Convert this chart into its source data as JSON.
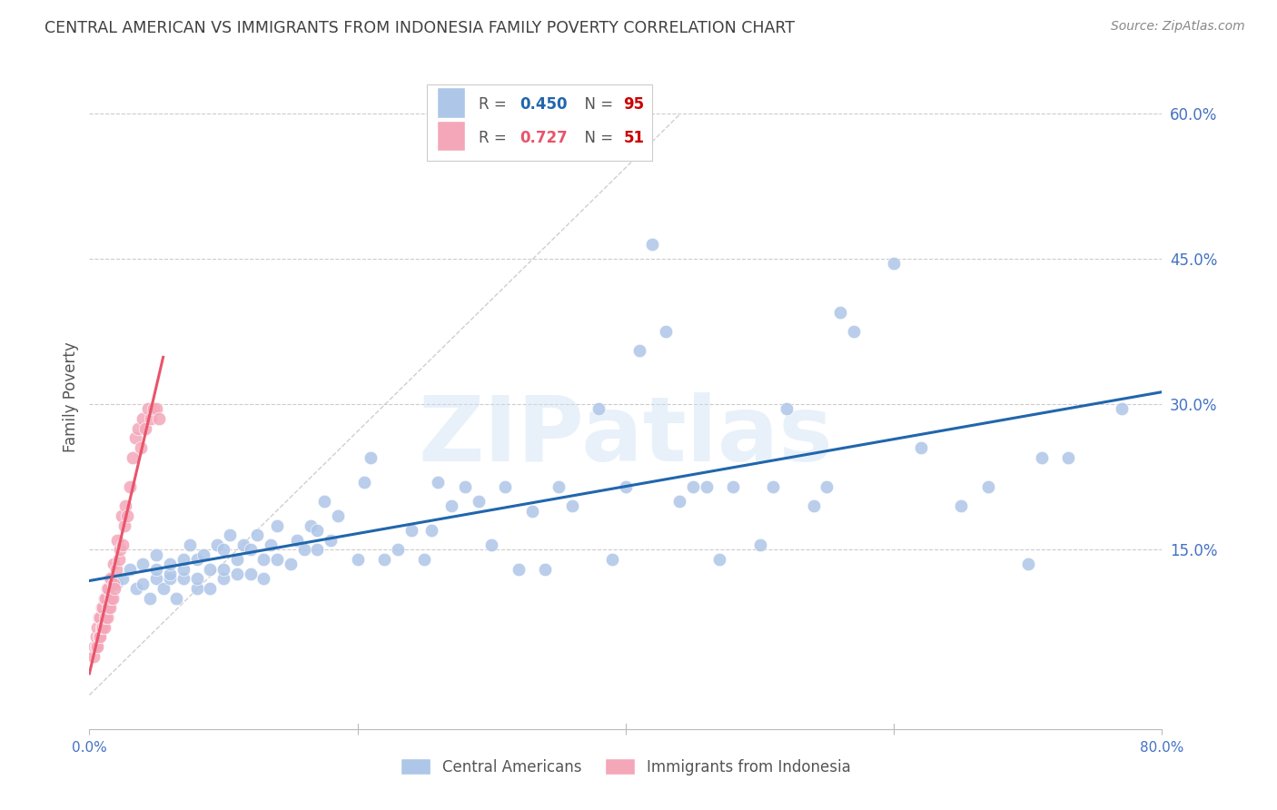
{
  "title": "CENTRAL AMERICAN VS IMMIGRANTS FROM INDONESIA FAMILY POVERTY CORRELATION CHART",
  "source": "Source: ZipAtlas.com",
  "ylabel": "Family Poverty",
  "watermark": "ZIPatlas",
  "xlim": [
    0.0,
    0.8
  ],
  "ylim": [
    -0.035,
    0.65
  ],
  "blue_R": 0.45,
  "blue_N": 95,
  "pink_R": 0.727,
  "pink_N": 51,
  "blue_color": "#aec6e8",
  "pink_color": "#f4a7b9",
  "blue_line_color": "#2166ac",
  "pink_line_color": "#e8546a",
  "diag_color": "#cccccc",
  "grid_color": "#cccccc",
  "blue_scatter_x": [
    0.02,
    0.025,
    0.03,
    0.035,
    0.04,
    0.04,
    0.045,
    0.05,
    0.05,
    0.05,
    0.055,
    0.06,
    0.06,
    0.06,
    0.065,
    0.07,
    0.07,
    0.07,
    0.075,
    0.08,
    0.08,
    0.08,
    0.085,
    0.09,
    0.09,
    0.095,
    0.1,
    0.1,
    0.1,
    0.105,
    0.11,
    0.11,
    0.115,
    0.12,
    0.12,
    0.125,
    0.13,
    0.13,
    0.135,
    0.14,
    0.14,
    0.15,
    0.155,
    0.16,
    0.165,
    0.17,
    0.17,
    0.175,
    0.18,
    0.185,
    0.2,
    0.205,
    0.21,
    0.22,
    0.23,
    0.24,
    0.25,
    0.255,
    0.26,
    0.27,
    0.28,
    0.29,
    0.3,
    0.31,
    0.32,
    0.33,
    0.34,
    0.35,
    0.36,
    0.38,
    0.39,
    0.4,
    0.41,
    0.42,
    0.43,
    0.44,
    0.45,
    0.46,
    0.47,
    0.48,
    0.5,
    0.51,
    0.52,
    0.54,
    0.55,
    0.56,
    0.57,
    0.6,
    0.62,
    0.65,
    0.67,
    0.7,
    0.71,
    0.73,
    0.77
  ],
  "blue_scatter_y": [
    0.115,
    0.12,
    0.13,
    0.11,
    0.115,
    0.135,
    0.1,
    0.12,
    0.13,
    0.145,
    0.11,
    0.12,
    0.125,
    0.135,
    0.1,
    0.12,
    0.13,
    0.14,
    0.155,
    0.11,
    0.12,
    0.14,
    0.145,
    0.11,
    0.13,
    0.155,
    0.12,
    0.13,
    0.15,
    0.165,
    0.125,
    0.14,
    0.155,
    0.125,
    0.15,
    0.165,
    0.12,
    0.14,
    0.155,
    0.14,
    0.175,
    0.135,
    0.16,
    0.15,
    0.175,
    0.15,
    0.17,
    0.2,
    0.16,
    0.185,
    0.14,
    0.22,
    0.245,
    0.14,
    0.15,
    0.17,
    0.14,
    0.17,
    0.22,
    0.195,
    0.215,
    0.2,
    0.155,
    0.215,
    0.13,
    0.19,
    0.13,
    0.215,
    0.195,
    0.295,
    0.14,
    0.215,
    0.355,
    0.465,
    0.375,
    0.2,
    0.215,
    0.215,
    0.14,
    0.215,
    0.155,
    0.215,
    0.295,
    0.195,
    0.215,
    0.395,
    0.375,
    0.445,
    0.255,
    0.195,
    0.215,
    0.135,
    0.245,
    0.245,
    0.295
  ],
  "pink_scatter_x": [
    0.003,
    0.004,
    0.005,
    0.005,
    0.006,
    0.006,
    0.007,
    0.007,
    0.008,
    0.008,
    0.009,
    0.009,
    0.01,
    0.01,
    0.011,
    0.011,
    0.012,
    0.012,
    0.013,
    0.013,
    0.014,
    0.014,
    0.015,
    0.015,
    0.016,
    0.016,
    0.017,
    0.018,
    0.018,
    0.019,
    0.02,
    0.021,
    0.022,
    0.023,
    0.024,
    0.025,
    0.026,
    0.027,
    0.028,
    0.03,
    0.032,
    0.034,
    0.036,
    0.038,
    0.04,
    0.042,
    0.044,
    0.046,
    0.048,
    0.05,
    0.052
  ],
  "pink_scatter_y": [
    0.04,
    0.05,
    0.05,
    0.06,
    0.05,
    0.07,
    0.06,
    0.08,
    0.06,
    0.08,
    0.07,
    0.09,
    0.07,
    0.09,
    0.07,
    0.1,
    0.08,
    0.1,
    0.08,
    0.11,
    0.09,
    0.11,
    0.09,
    0.12,
    0.1,
    0.12,
    0.1,
    0.115,
    0.135,
    0.11,
    0.13,
    0.16,
    0.14,
    0.15,
    0.185,
    0.155,
    0.175,
    0.195,
    0.185,
    0.215,
    0.245,
    0.265,
    0.275,
    0.255,
    0.285,
    0.275,
    0.295,
    0.285,
    0.295,
    0.295,
    0.285
  ],
  "background_color": "#ffffff",
  "title_color": "#404040",
  "axis_label_color": "#555555",
  "tick_label_color": "#4472c4",
  "source_color": "#888888"
}
